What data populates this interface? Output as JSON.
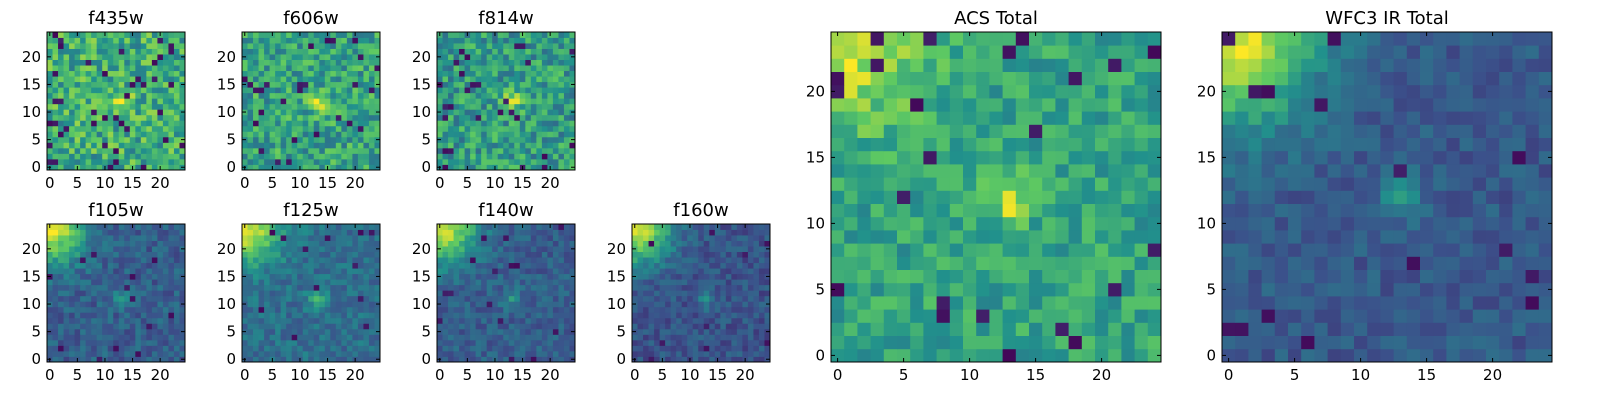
{
  "colormap": [
    "#440154",
    "#3b528b",
    "#21918c",
    "#5ec962",
    "#fde725"
  ],
  "chart_data": [
    {
      "id": "f435w",
      "type": "heatmap",
      "title": "f435w",
      "n": 25,
      "seed": 11,
      "base": 0.62,
      "noise": 0.22,
      "corner": 0.0,
      "blob": 0.3,
      "blob_center": [
        13,
        12
      ],
      "dark_specks": 0.06,
      "xticks": [
        0,
        5,
        10,
        15,
        20
      ],
      "yticks": [
        0,
        5,
        10,
        15,
        20
      ],
      "xlim": [
        0,
        24
      ],
      "ylim": [
        0,
        24
      ]
    },
    {
      "id": "f606w",
      "type": "heatmap",
      "title": "f606w",
      "n": 25,
      "seed": 23,
      "base": 0.58,
      "noise": 0.2,
      "corner": 0.0,
      "blob": 0.4,
      "blob_center": [
        13,
        12
      ],
      "dark_specks": 0.04,
      "xticks": [
        0,
        5,
        10,
        15,
        20
      ],
      "yticks": [
        0,
        5,
        10,
        15,
        20
      ],
      "xlim": [
        0,
        24
      ],
      "ylim": [
        0,
        24
      ]
    },
    {
      "id": "f814w",
      "type": "heatmap",
      "title": "f814w",
      "n": 25,
      "seed": 37,
      "base": 0.55,
      "noise": 0.2,
      "corner": 0.0,
      "blob": 0.35,
      "blob_center": [
        13,
        12
      ],
      "dark_specks": 0.05,
      "xticks": [
        0,
        5,
        10,
        15,
        20
      ],
      "yticks": [
        0,
        5,
        10,
        15,
        20
      ],
      "xlim": [
        0,
        24
      ],
      "ylim": [
        0,
        24
      ]
    },
    {
      "id": "f105w",
      "type": "heatmap",
      "title": "f105w",
      "n": 25,
      "seed": 41,
      "base": 0.3,
      "noise": 0.1,
      "corner": 0.65,
      "blob": 0.18,
      "blob_center": [
        13,
        11
      ],
      "dark_specks": 0.02,
      "xticks": [
        0,
        5,
        10,
        15,
        20
      ],
      "yticks": [
        0,
        5,
        10,
        15,
        20
      ],
      "xlim": [
        0,
        24
      ],
      "ylim": [
        0,
        24
      ]
    },
    {
      "id": "f125w",
      "type": "heatmap",
      "title": "f125w",
      "n": 25,
      "seed": 53,
      "base": 0.36,
      "noise": 0.1,
      "corner": 0.6,
      "blob": 0.25,
      "blob_center": [
        13,
        11
      ],
      "dark_specks": 0.02,
      "xticks": [
        0,
        5,
        10,
        15,
        20
      ],
      "yticks": [
        0,
        5,
        10,
        15,
        20
      ],
      "xlim": [
        0,
        24
      ],
      "ylim": [
        0,
        24
      ]
    },
    {
      "id": "f140w",
      "type": "heatmap",
      "title": "f140w",
      "n": 25,
      "seed": 67,
      "base": 0.3,
      "noise": 0.09,
      "corner": 0.65,
      "blob": 0.2,
      "blob_center": [
        13,
        11
      ],
      "dark_specks": 0.02,
      "xticks": [
        0,
        5,
        10,
        15,
        20
      ],
      "yticks": [
        0,
        5,
        10,
        15,
        20
      ],
      "xlim": [
        0,
        24
      ],
      "ylim": [
        0,
        24
      ]
    },
    {
      "id": "f160w",
      "type": "heatmap",
      "title": "f160w",
      "n": 25,
      "seed": 79,
      "base": 0.26,
      "noise": 0.09,
      "corner": 0.7,
      "blob": 0.2,
      "blob_center": [
        13,
        11
      ],
      "dark_specks": 0.02,
      "xticks": [
        0,
        5,
        10,
        15,
        20
      ],
      "yticks": [
        0,
        5,
        10,
        15,
        20
      ],
      "xlim": [
        0,
        24
      ],
      "ylim": [
        0,
        24
      ]
    },
    {
      "id": "acs-total",
      "type": "heatmap",
      "title": "ACS Total",
      "n": 25,
      "seed": 97,
      "base": 0.58,
      "noise": 0.14,
      "corner": 0.35,
      "blob": 0.38,
      "blob_center": [
        13,
        12
      ],
      "dark_specks": 0.04,
      "xticks": [
        0,
        5,
        10,
        15,
        20
      ],
      "yticks": [
        0,
        5,
        10,
        15,
        20
      ],
      "xlim": [
        0,
        24
      ],
      "ylim": [
        0,
        24
      ]
    },
    {
      "id": "wfc3-ir-total",
      "type": "heatmap",
      "title": "WFC3 IR Total",
      "n": 25,
      "seed": 113,
      "base": 0.28,
      "noise": 0.08,
      "corner": 0.7,
      "blob": 0.22,
      "blob_center": [
        13,
        12
      ],
      "dark_specks": 0.02,
      "xticks": [
        0,
        5,
        10,
        15,
        20
      ],
      "yticks": [
        0,
        5,
        10,
        15,
        20
      ],
      "xlim": [
        0,
        24
      ],
      "ylim": [
        0,
        24
      ]
    }
  ]
}
